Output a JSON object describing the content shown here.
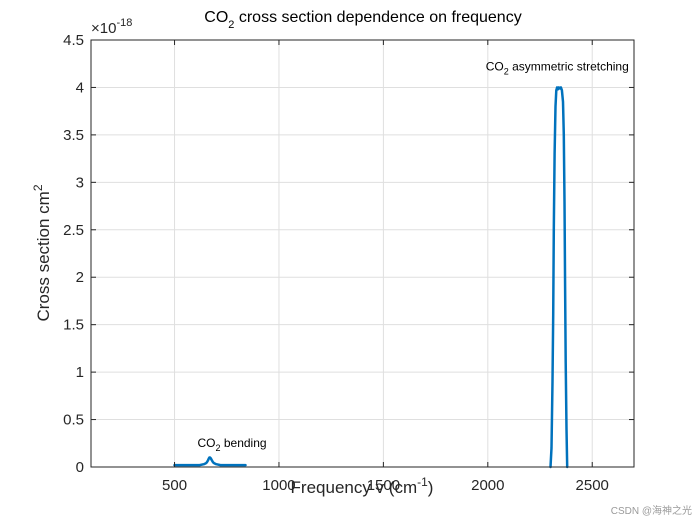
{
  "chart_data": {
    "type": "line",
    "title": {
      "pre": "CO",
      "sub": "2",
      "post": " cross section dependence on frequency"
    },
    "xlabel": {
      "pre": "Frequency v (cm",
      "sup": "-1",
      "post": ")"
    },
    "ylabel": {
      "pre": "Cross section cm",
      "sup": "2"
    },
    "exponent": {
      "base": "×10",
      "sup": "-18"
    },
    "xlim": [
      100,
      2700
    ],
    "ylim": [
      0,
      4.5
    ],
    "xticks": [
      500,
      1000,
      1500,
      2000,
      2500
    ],
    "yticks": [
      0,
      0.5,
      1,
      1.5,
      2,
      2.5,
      3,
      3.5,
      4,
      4.5
    ],
    "grid": true,
    "line_color": "#0072BD",
    "series": [
      {
        "name": "bending band",
        "x": [
          500,
          600,
          620,
          640,
          650,
          655,
          660,
          664,
          667,
          670,
          674,
          679,
          684,
          690,
          700,
          720,
          760,
          800,
          840
        ],
        "y": [
          0.02,
          0.02,
          0.02,
          0.03,
          0.04,
          0.05,
          0.07,
          0.09,
          0.1,
          0.1,
          0.09,
          0.07,
          0.05,
          0.04,
          0.03,
          0.02,
          0.02,
          0.02,
          0.02
        ]
      },
      {
        "name": "asymmetric stretching band",
        "x": [
          2300,
          2305,
          2310,
          2313,
          2316,
          2320,
          2324,
          2328,
          2332,
          2336,
          2340,
          2345,
          2350,
          2355,
          2360,
          2364,
          2367,
          2370,
          2373,
          2377,
          2380
        ],
        "y": [
          0,
          0.2,
          0.9,
          1.6,
          2.5,
          3.3,
          3.8,
          3.97,
          4.0,
          3.98,
          4.0,
          3.99,
          4.0,
          3.97,
          3.85,
          3.5,
          2.8,
          1.9,
          1.1,
          0.4,
          0
        ]
      }
    ],
    "annotations": [
      {
        "pre": "CO",
        "sub": "2",
        "post": " bending",
        "x": 610,
        "y": 0.21
      },
      {
        "pre": "CO",
        "sub": "2",
        "post": " asymmetric stretching",
        "x": 1990,
        "y": 4.18
      }
    ]
  },
  "watermark": "CSDN @海神之光"
}
